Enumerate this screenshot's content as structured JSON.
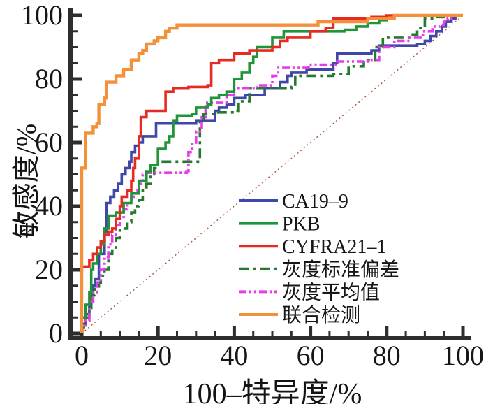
{
  "figure": {
    "background": "#ffffff"
  },
  "chart_data": {
    "type": "line",
    "subtype": "roc_step_curves",
    "title": "",
    "xlabel": "100–特异度/%",
    "ylabel": "敏感度/%",
    "xlim": [
      0,
      100
    ],
    "ylim": [
      0,
      100
    ],
    "x_major_ticks": [
      0,
      20,
      40,
      60,
      80,
      100
    ],
    "y_major_ticks": [
      0,
      20,
      40,
      60,
      80,
      100
    ],
    "minor_tick_step": 5,
    "grid": false,
    "axis_color": "#2e2e2e",
    "tick_label_color": "#161616",
    "legend_position": "inside-right-middle",
    "reference_line": {
      "name": "chance-diagonal",
      "from": [
        0,
        0
      ],
      "to": [
        100,
        100
      ],
      "color": "#a8563e",
      "style": "dotted"
    },
    "series": [
      {
        "name": "CA19–9",
        "color": "#3f47a8",
        "style": "solid",
        "width": 3.6,
        "points": [
          [
            0,
            0
          ],
          [
            0,
            3
          ],
          [
            1,
            6
          ],
          [
            2,
            9
          ],
          [
            2.5,
            13
          ],
          [
            3,
            15
          ],
          [
            3.5,
            17
          ],
          [
            4.5,
            25
          ],
          [
            6,
            32
          ],
          [
            6.5,
            41
          ],
          [
            7.5,
            43
          ],
          [
            8.5,
            45
          ],
          [
            9.5,
            47
          ],
          [
            10.5,
            50
          ],
          [
            11.5,
            52
          ],
          [
            12.5,
            54
          ],
          [
            13,
            57
          ],
          [
            14,
            59
          ],
          [
            15,
            60
          ],
          [
            16,
            62
          ],
          [
            19.5,
            66
          ],
          [
            30,
            67
          ],
          [
            35,
            70
          ],
          [
            36,
            71
          ],
          [
            38,
            72
          ],
          [
            40,
            74
          ],
          [
            43,
            75
          ],
          [
            48,
            77
          ],
          [
            52,
            79
          ],
          [
            54,
            81
          ],
          [
            55,
            82
          ],
          [
            59,
            83
          ],
          [
            66,
            85
          ],
          [
            67,
            88
          ],
          [
            76,
            89
          ],
          [
            78,
            90.5
          ],
          [
            88,
            91
          ],
          [
            90,
            92
          ],
          [
            91.5,
            93.5
          ],
          [
            93,
            95
          ],
          [
            94.5,
            96.5
          ],
          [
            95.5,
            98
          ],
          [
            97,
            99
          ],
          [
            98,
            100
          ],
          [
            100,
            100
          ]
        ]
      },
      {
        "name": "PKB",
        "color": "#1e9638",
        "style": "solid",
        "width": 3.6,
        "points": [
          [
            0,
            0
          ],
          [
            0,
            5
          ],
          [
            1,
            9
          ],
          [
            2,
            13
          ],
          [
            2.5,
            20
          ],
          [
            3,
            22
          ],
          [
            4,
            25
          ],
          [
            5,
            28
          ],
          [
            6,
            33
          ],
          [
            7,
            37
          ],
          [
            9,
            38
          ],
          [
            11,
            41
          ],
          [
            13,
            44
          ],
          [
            15,
            48
          ],
          [
            17,
            51
          ],
          [
            18,
            53
          ],
          [
            20,
            58
          ],
          [
            22,
            60
          ],
          [
            23,
            62
          ],
          [
            24,
            67
          ],
          [
            25,
            68.5
          ],
          [
            29,
            69
          ],
          [
            30,
            71
          ],
          [
            33,
            72
          ],
          [
            34,
            74
          ],
          [
            36,
            75
          ],
          [
            38,
            76
          ],
          [
            40,
            80
          ],
          [
            42,
            82
          ],
          [
            44,
            85
          ],
          [
            45,
            87
          ],
          [
            46,
            90
          ],
          [
            50,
            93
          ],
          [
            53,
            95
          ],
          [
            69,
            95.5
          ],
          [
            72,
            96.5
          ],
          [
            75,
            97.5
          ],
          [
            78,
            98.5
          ],
          [
            80,
            99
          ],
          [
            82,
            100
          ],
          [
            100,
            100
          ]
        ]
      },
      {
        "name": "CYFRA21–1",
        "color": "#e52b22",
        "style": "solid",
        "width": 3.6,
        "points": [
          [
            0,
            0
          ],
          [
            0,
            21
          ],
          [
            2,
            23
          ],
          [
            3,
            25
          ],
          [
            4,
            27
          ],
          [
            5,
            29
          ],
          [
            6,
            31
          ],
          [
            7,
            32
          ],
          [
            8,
            33
          ],
          [
            9,
            36
          ],
          [
            10,
            40
          ],
          [
            10.5,
            43
          ],
          [
            12,
            45
          ],
          [
            13,
            48
          ],
          [
            13.5,
            52
          ],
          [
            14,
            55
          ],
          [
            15,
            62
          ],
          [
            15.5,
            68
          ],
          [
            17,
            70
          ],
          [
            22,
            76
          ],
          [
            24,
            77
          ],
          [
            28,
            77.5
          ],
          [
            33,
            78
          ],
          [
            34,
            85
          ],
          [
            36,
            86
          ],
          [
            40,
            88
          ],
          [
            44,
            89
          ],
          [
            50,
            90
          ],
          [
            52,
            92
          ],
          [
            54,
            93
          ],
          [
            60,
            95
          ],
          [
            64,
            96
          ],
          [
            66,
            99
          ],
          [
            76,
            99.5
          ],
          [
            80,
            100
          ],
          [
            100,
            100
          ]
        ]
      },
      {
        "name": "灰度标准偏差",
        "color": "#267a30",
        "style": "dashdot",
        "width": 3.6,
        "points": [
          [
            0,
            0
          ],
          [
            0,
            2
          ],
          [
            1,
            5
          ],
          [
            2,
            8
          ],
          [
            2.5,
            12
          ],
          [
            3.5,
            14
          ],
          [
            4.5,
            16
          ],
          [
            5,
            18
          ],
          [
            6,
            20
          ],
          [
            7,
            25
          ],
          [
            8,
            27
          ],
          [
            9,
            30
          ],
          [
            10,
            33
          ],
          [
            12,
            35
          ],
          [
            13,
            38
          ],
          [
            14,
            40
          ],
          [
            15,
            42
          ],
          [
            16,
            45
          ],
          [
            17,
            47
          ],
          [
            18,
            50
          ],
          [
            19,
            52
          ],
          [
            20,
            54
          ],
          [
            31,
            67
          ],
          [
            32,
            69
          ],
          [
            35,
            69.5
          ],
          [
            40,
            70
          ],
          [
            41,
            73
          ],
          [
            44,
            77
          ],
          [
            55,
            77.5
          ],
          [
            56,
            81
          ],
          [
            66,
            81.5
          ],
          [
            70,
            84
          ],
          [
            74,
            86
          ],
          [
            77,
            90
          ],
          [
            79,
            93
          ],
          [
            86,
            94
          ],
          [
            88,
            96
          ],
          [
            90,
            99
          ],
          [
            93,
            99.5
          ],
          [
            95,
            100
          ],
          [
            100,
            100
          ]
        ]
      },
      {
        "name": "灰度平均值",
        "color": "#e83cea",
        "style": "dashdotdot",
        "width": 3.6,
        "points": [
          [
            0,
            0
          ],
          [
            0,
            2
          ],
          [
            1,
            4
          ],
          [
            2,
            10
          ],
          [
            3,
            13
          ],
          [
            4,
            16
          ],
          [
            5,
            20
          ],
          [
            6,
            24
          ],
          [
            7,
            28
          ],
          [
            8,
            31
          ],
          [
            9,
            34
          ],
          [
            10,
            36
          ],
          [
            11,
            39
          ],
          [
            12,
            41
          ],
          [
            13,
            43
          ],
          [
            14,
            45
          ],
          [
            15,
            47
          ],
          [
            16,
            50
          ],
          [
            17,
            50.5
          ],
          [
            27.5,
            51
          ],
          [
            28,
            57
          ],
          [
            29,
            60
          ],
          [
            30,
            63.5
          ],
          [
            31.5,
            68
          ],
          [
            32.5,
            72.5
          ],
          [
            38,
            75
          ],
          [
            40,
            77
          ],
          [
            46,
            78
          ],
          [
            50,
            81
          ],
          [
            51.5,
            83.5
          ],
          [
            59.5,
            84.5
          ],
          [
            67,
            85.5
          ],
          [
            75,
            86
          ],
          [
            78,
            90
          ],
          [
            82,
            92
          ],
          [
            86,
            93
          ],
          [
            89.5,
            95
          ],
          [
            92,
            96.5
          ],
          [
            94,
            97
          ],
          [
            95,
            98
          ],
          [
            96,
            99
          ],
          [
            97,
            100
          ],
          [
            100,
            100
          ]
        ]
      },
      {
        "name": "联合检测",
        "color": "#f2913a",
        "style": "solid",
        "width": 4.4,
        "points": [
          [
            0,
            0
          ],
          [
            0,
            52
          ],
          [
            1,
            63
          ],
          [
            3,
            65
          ],
          [
            4,
            66
          ],
          [
            4.5,
            72
          ],
          [
            6,
            74
          ],
          [
            6.5,
            79
          ],
          [
            9,
            81
          ],
          [
            11,
            83
          ],
          [
            13,
            86
          ],
          [
            15,
            88
          ],
          [
            16,
            89
          ],
          [
            17,
            91
          ],
          [
            19,
            92
          ],
          [
            20,
            93
          ],
          [
            22,
            95
          ],
          [
            23,
            96
          ],
          [
            25,
            97
          ],
          [
            62,
            98
          ],
          [
            75,
            99
          ],
          [
            82,
            100
          ],
          [
            100,
            100
          ]
        ]
      }
    ]
  }
}
